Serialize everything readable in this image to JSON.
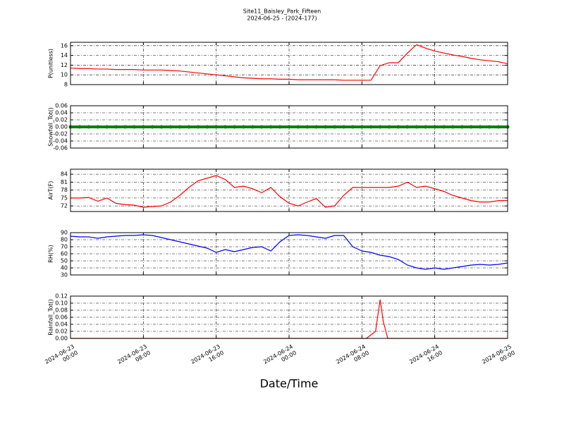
{
  "chart_data": {
    "type": "line",
    "title": "Site11_Baisley_Park_Fifteen",
    "subtitle": "2024-06-25 - (2024-177)",
    "x_label": "Date/Time",
    "xlim": [
      "2024-06-23 00:00",
      "2024-06-25 00:00"
    ],
    "xticks": [
      {
        "value": "2024-06-23 00:00",
        "label": "2024-06-23\n00:00"
      },
      {
        "value": "2024-06-23 08:00",
        "label": "2024-06-23\n08:00"
      },
      {
        "value": "2024-06-23 16:00",
        "label": "2024-06-23\n16:00"
      },
      {
        "value": "2024-06-24 00:00",
        "label": "2024-06-24\n00:00"
      },
      {
        "value": "2024-06-24 08:00",
        "label": "2024-06-24\n08:00"
      },
      {
        "value": "2024-06-24 16:00",
        "label": "2024-06-24\n16:00"
      },
      {
        "value": "2024-06-25 00:00",
        "label": "2024-06-25\n00:00"
      }
    ],
    "grid": true,
    "x": [
      "2024-06-23 00:00",
      "2024-06-23 01:00",
      "2024-06-23 02:00",
      "2024-06-23 03:00",
      "2024-06-23 04:00",
      "2024-06-23 05:00",
      "2024-06-23 06:00",
      "2024-06-23 07:00",
      "2024-06-23 08:00",
      "2024-06-23 09:00",
      "2024-06-23 10:00",
      "2024-06-23 11:00",
      "2024-06-23 12:00",
      "2024-06-23 13:00",
      "2024-06-23 14:00",
      "2024-06-23 15:00",
      "2024-06-23 16:00",
      "2024-06-23 17:00",
      "2024-06-23 18:00",
      "2024-06-23 19:00",
      "2024-06-23 20:00",
      "2024-06-23 21:00",
      "2024-06-23 22:00",
      "2024-06-23 23:00",
      "2024-06-24 00:00",
      "2024-06-24 01:00",
      "2024-06-24 02:00",
      "2024-06-24 03:00",
      "2024-06-24 04:00",
      "2024-06-24 05:00",
      "2024-06-24 06:00",
      "2024-06-24 07:00",
      "2024-06-24 08:00",
      "2024-06-24 09:00",
      "2024-06-24 10:00",
      "2024-06-24 11:00",
      "2024-06-24 12:00",
      "2024-06-24 13:00",
      "2024-06-24 14:00",
      "2024-06-24 15:00",
      "2024-06-24 16:00",
      "2024-06-24 17:00",
      "2024-06-24 18:00",
      "2024-06-24 19:00",
      "2024-06-24 20:00",
      "2024-06-24 21:00",
      "2024-06-24 22:00",
      "2024-06-24 23:00",
      "2024-06-25 00:00"
    ],
    "panels": [
      {
        "ylabel": "P(unitless)",
        "ylim": [
          8,
          16.7
        ],
        "yticks": [
          8,
          10,
          12,
          14,
          16
        ],
        "series": [
          {
            "color": "#ff0000",
            "marker": false,
            "values": [
              11.4,
              11.3,
              11.3,
              11.2,
              11.2,
              11.1,
              11.1,
              11.1,
              11.0,
              11.0,
              11.0,
              10.9,
              10.8,
              10.6,
              10.4,
              10.2,
              10.0,
              9.8,
              9.6,
              9.4,
              9.3,
              9.2,
              9.2,
              9.1,
              9.1,
              9.0,
              9.0,
              9.0,
              9.0,
              9.0,
              8.9,
              8.9,
              8.9,
              8.9,
              11.9,
              12.5,
              12.5,
              14.5,
              16.2,
              15.5,
              14.9,
              14.5,
              14.1,
              13.8,
              13.4,
              13.1,
              12.9,
              12.7,
              12.3
            ]
          }
        ]
      },
      {
        "ylabel": "Snowfall_Tot()",
        "ylim": [
          -0.06,
          0.06
        ],
        "yticks": [
          -0.06,
          -0.04,
          -0.02,
          {
            "value": 0,
            "label": "0.00"
          },
          0.02,
          0.04,
          0.06
        ],
        "series": [
          {
            "color": "#008000",
            "marker": true,
            "values": [
              0,
              0,
              0,
              0,
              0,
              0,
              0,
              0,
              0,
              0,
              0,
              0,
              0,
              0,
              0,
              0,
              0,
              0,
              0,
              0,
              0,
              0,
              0,
              0,
              0,
              0,
              0,
              0,
              0,
              0,
              0,
              0,
              0,
              0,
              0,
              0,
              0,
              0,
              0,
              0,
              0,
              0,
              0,
              0,
              0,
              0,
              0,
              0,
              0
            ]
          }
        ]
      },
      {
        "ylabel": "AirT(F)",
        "ylim": [
          69.9,
          85.9
        ],
        "yticks": [
          72,
          75,
          78,
          81,
          84
        ],
        "series": [
          {
            "color": "#ff0000",
            "marker": false,
            "values": [
              75,
              75,
              75.2,
              73.8,
              75,
              73,
              72.5,
              72.3,
              71.5,
              71.8,
              72,
              73.5,
              76,
              79,
              81.5,
              82.5,
              83.5,
              82,
              79,
              79.5,
              78.5,
              77,
              79,
              75.5,
              73,
              72,
              73.5,
              74.8,
              71.5,
              72,
              76,
              79,
              79,
              79,
              79,
              79,
              79.5,
              81,
              79,
              79.5,
              78.5,
              77.5,
              76,
              75,
              74,
              73.5,
              73.5,
              74,
              74
            ]
          }
        ]
      },
      {
        "ylabel": "RH(%)",
        "ylim": [
          30,
          90
        ],
        "yticks": [
          30,
          40,
          50,
          60,
          70,
          80,
          90
        ],
        "series": [
          {
            "color": "#0000ff",
            "marker": false,
            "values": [
              85,
              84,
              84,
              82,
              84,
              85,
              86,
              86,
              87,
              86,
              83,
              80,
              77,
              74,
              71,
              68,
              62,
              66,
              63,
              66,
              69,
              70,
              64,
              77,
              86,
              87,
              86,
              84,
              82,
              86,
              86,
              70,
              64,
              62,
              58,
              56,
              52,
              44,
              40,
              38,
              40,
              38,
              40,
              42,
              44,
              45,
              44,
              45,
              47
            ]
          }
        ]
      },
      {
        "ylabel": "Rainfall_Tot()",
        "ylim": [
          0,
          0.12
        ],
        "yticks": [
          {
            "value": 0,
            "label": "0.00"
          },
          0.02,
          0.04,
          0.06,
          0.08,
          {
            "value": 0.1,
            "label": "0.10"
          },
          0.12
        ],
        "x": [
          "2024-06-23 00:00",
          "2024-06-24 08:30",
          "2024-06-24 09:30",
          "2024-06-24 10:00",
          "2024-06-24 10:20",
          "2024-06-24 10:50",
          "2024-06-25 00:00"
        ],
        "series": [
          {
            "color": "#ff0000",
            "marker": false,
            "values": [
              0,
              0,
              0.02,
              0.11,
              0.05,
              0,
              0
            ]
          }
        ]
      }
    ]
  }
}
